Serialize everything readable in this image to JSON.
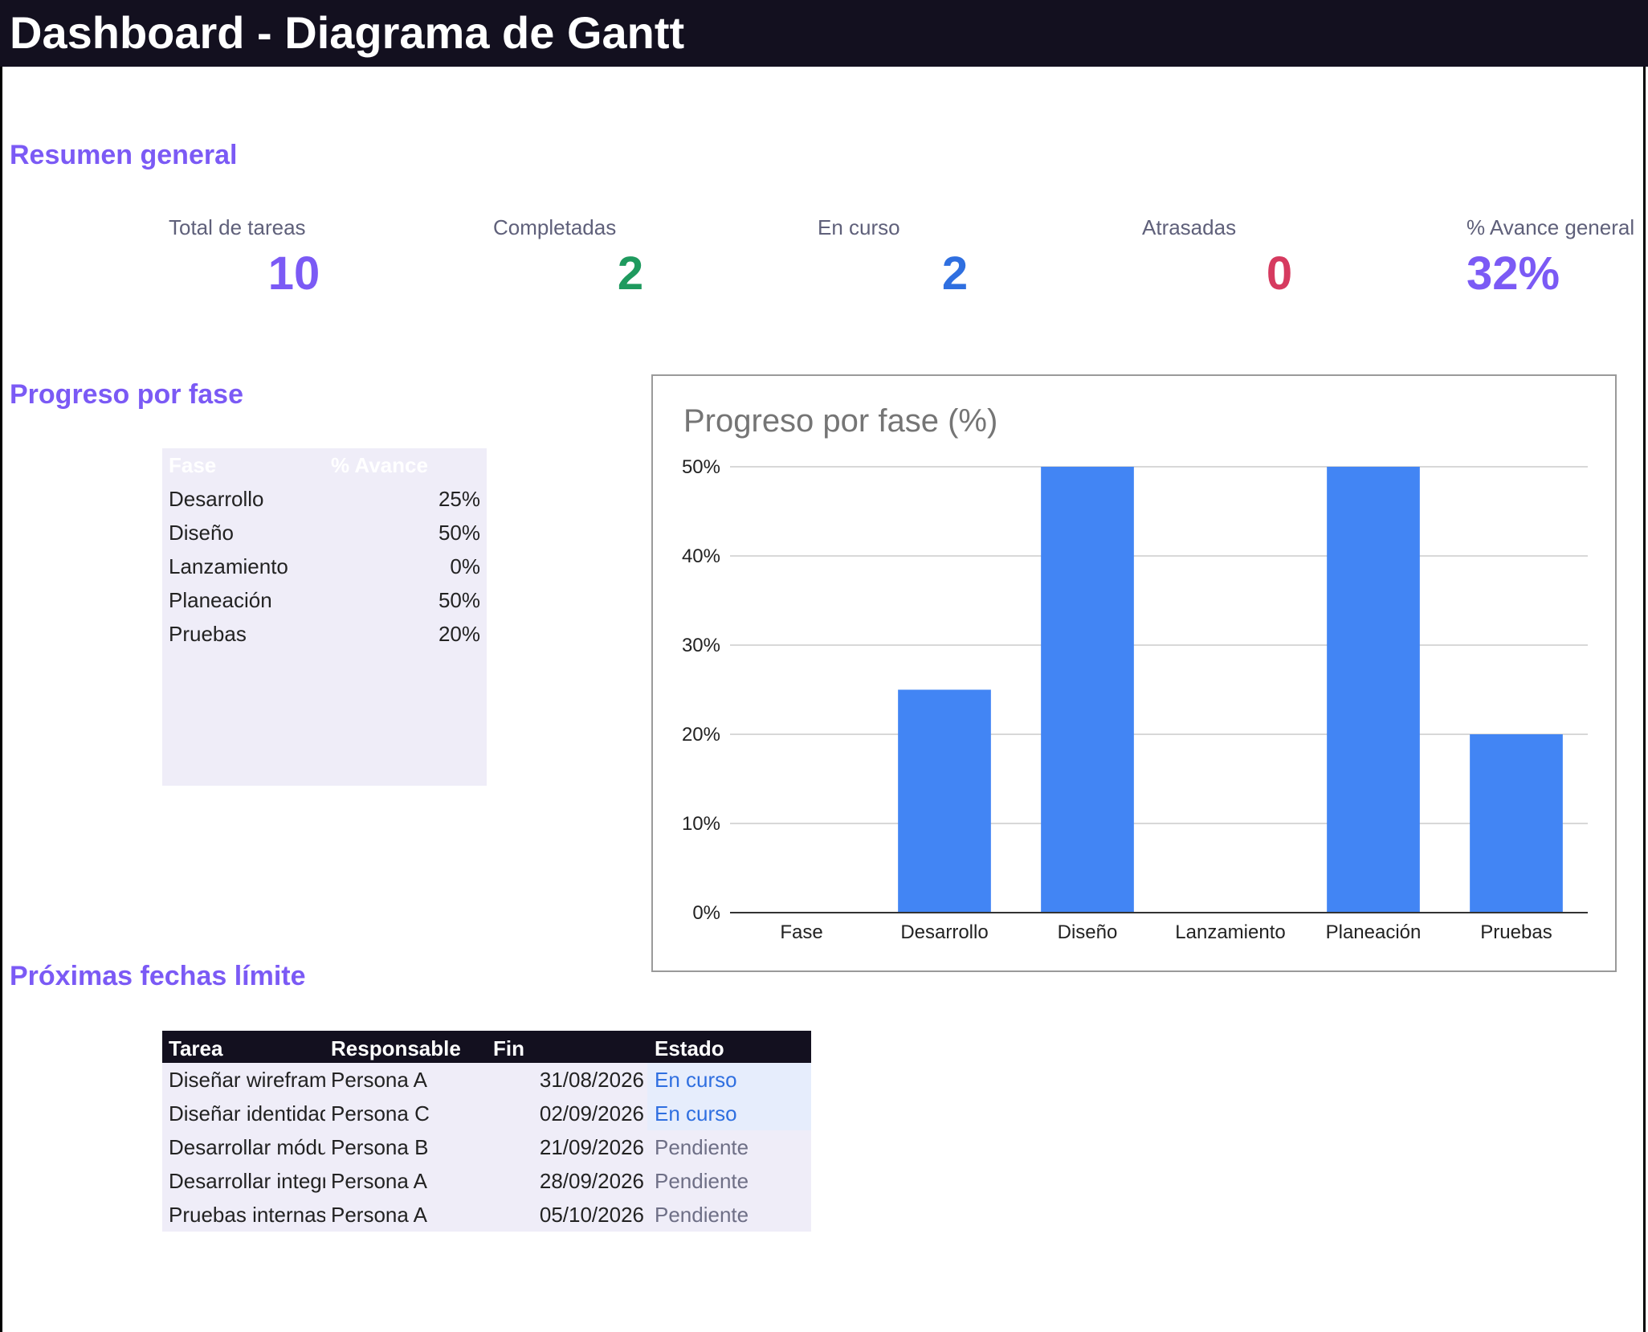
{
  "title": "Dashboard - Diagrama de Gantt",
  "sections": {
    "summary": "Resumen general",
    "progress": "Progreso por fase",
    "deadlines": "Próximas fechas límite"
  },
  "kpis": [
    {
      "label": "Total de tareas",
      "value": "10",
      "color": "#7b5af5"
    },
    {
      "label": "Completadas",
      "value": "2",
      "color": "#1e9a5e"
    },
    {
      "label": "En curso",
      "value": "2",
      "color": "#2f6fe0"
    },
    {
      "label": "Atrasadas",
      "value": "0",
      "color": "#d63a5f"
    },
    {
      "label": "% Avance general",
      "value": "32%",
      "color": "#7b5af5"
    }
  ],
  "phase_table": {
    "headers": [
      "Fase",
      "% Avance"
    ],
    "rows": [
      {
        "fase": "Desarrollo",
        "avance": "25%"
      },
      {
        "fase": "Diseño",
        "avance": "50%"
      },
      {
        "fase": "Lanzamiento",
        "avance": "0%"
      },
      {
        "fase": "Planeación",
        "avance": "50%"
      },
      {
        "fase": "Pruebas",
        "avance": "20%"
      }
    ]
  },
  "chart_data": {
    "type": "bar",
    "title": "Progreso por fase (%)",
    "categories": [
      "Fase",
      "Desarrollo",
      "Diseño",
      "Lanzamiento",
      "Planeación",
      "Pruebas"
    ],
    "values": [
      0,
      25,
      50,
      0,
      50,
      20
    ],
    "ylim": [
      0,
      50
    ],
    "yticks": [
      "0%",
      "10%",
      "20%",
      "30%",
      "40%",
      "50%"
    ],
    "bar_color": "#4285f4",
    "grid": true,
    "legend": "none",
    "xlabel": "",
    "ylabel": ""
  },
  "deadline_table": {
    "headers": [
      "Tarea",
      "Responsable",
      "Fin",
      "Estado"
    ],
    "rows": [
      {
        "tarea": "Diseñar wireframes",
        "responsable": "Persona A",
        "fin": "31/08/2026",
        "estado": "En curso"
      },
      {
        "tarea": "Diseñar identidad",
        "responsable": "Persona C",
        "fin": "02/09/2026",
        "estado": "En curso"
      },
      {
        "tarea": "Desarrollar módulo",
        "responsable": "Persona B",
        "fin": "21/09/2026",
        "estado": "Pendiente"
      },
      {
        "tarea": "Desarrollar integración",
        "responsable": "Persona A",
        "fin": "28/09/2026",
        "estado": "Pendiente"
      },
      {
        "tarea": "Pruebas internas",
        "responsable": "Persona A",
        "fin": "05/10/2026",
        "estado": "Pendiente"
      }
    ],
    "status_colors": {
      "En curso": "#2f6fe0",
      "Pendiente": "#6e6f86"
    },
    "status_highlight": {
      "En curso": "#e6edfc"
    }
  }
}
